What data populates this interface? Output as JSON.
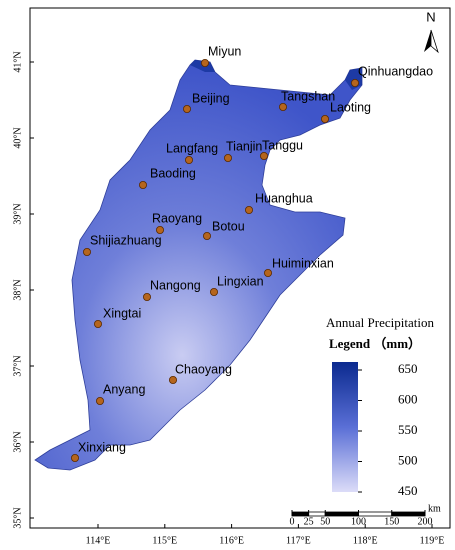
{
  "map": {
    "xticks": [
      {
        "value": 114,
        "label": "114°E"
      },
      {
        "value": 115,
        "label": "115°E"
      },
      {
        "value": 116,
        "label": "116°E"
      },
      {
        "value": 117,
        "label": "117°E"
      },
      {
        "value": 118,
        "label": "118°E"
      },
      {
        "value": 119,
        "label": "119°E"
      }
    ],
    "yticks": [
      {
        "value": 41,
        "label": "41°N"
      },
      {
        "value": 40,
        "label": "40°N"
      },
      {
        "value": 39,
        "label": "39°N"
      },
      {
        "value": 38,
        "label": "38°N"
      },
      {
        "value": 37,
        "label": "37°N"
      },
      {
        "value": 36,
        "label": "36°N"
      },
      {
        "value": 35,
        "label": "35°N"
      }
    ],
    "north": "N",
    "stations": [
      "Miyun",
      "Qinhuangdao",
      "Beijing",
      "Tangshan",
      "Laoting",
      "Langfang",
      "Tianjin",
      "Tanggu",
      "Baoding",
      "Huanghua",
      "Raoyang",
      "Botou",
      "Shijiazhuang",
      "Huiminxian",
      "Nangong",
      "Lingxian",
      "Xingtai",
      "Chaoyang",
      "Anyang",
      "Xinxiang"
    ]
  },
  "legend": {
    "title": "Annual Precipitation",
    "heading": "Legend （mm）",
    "ticks": [
      650,
      600,
      550,
      500,
      450
    ]
  },
  "scale_bar": {
    "ticks": [
      0,
      25,
      50,
      100,
      150,
      200
    ],
    "unit": "km"
  }
}
